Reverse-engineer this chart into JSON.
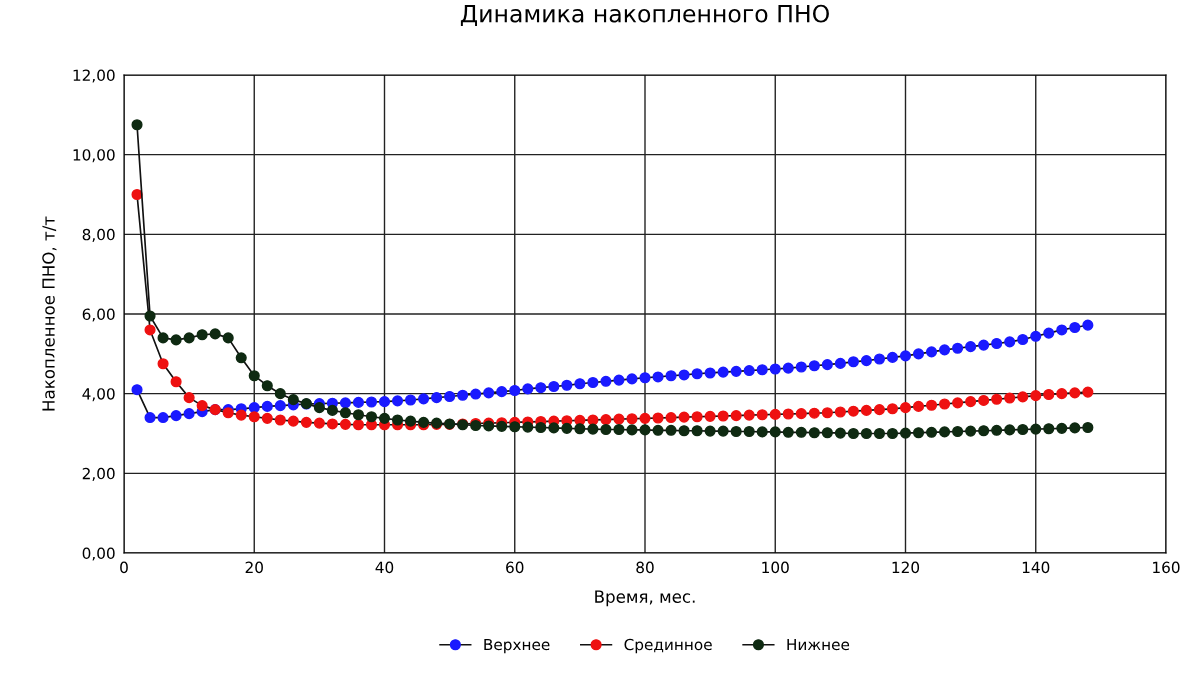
{
  "chart_data": {
    "type": "line",
    "title": "Динамика накопленного ПНО",
    "xlabel": "Время, мес.",
    "ylabel": "Накопленное ПНО, т/т",
    "x": [
      2,
      4,
      6,
      8,
      10,
      12,
      14,
      16,
      18,
      20,
      22,
      24,
      26,
      28,
      30,
      32,
      34,
      36,
      38,
      40,
      42,
      44,
      46,
      48,
      50,
      52,
      54,
      56,
      58,
      60,
      62,
      64,
      66,
      68,
      70,
      72,
      74,
      76,
      78,
      80,
      82,
      84,
      86,
      88,
      90,
      92,
      94,
      96,
      98,
      100,
      102,
      104,
      106,
      108,
      110,
      112,
      114,
      116,
      118,
      120,
      122,
      124,
      126,
      128,
      130,
      132,
      134,
      136,
      138,
      140,
      142,
      144,
      146,
      148
    ],
    "series": [
      {
        "name": "Верхнее",
        "color": "#1a1aff",
        "values": [
          4.1,
          3.4,
          3.4,
          3.45,
          3.5,
          3.55,
          3.6,
          3.6,
          3.62,
          3.65,
          3.68,
          3.7,
          3.72,
          3.74,
          3.75,
          3.76,
          3.77,
          3.78,
          3.79,
          3.8,
          3.82,
          3.84,
          3.87,
          3.9,
          3.93,
          3.96,
          3.99,
          4.02,
          4.05,
          4.08,
          4.12,
          4.15,
          4.18,
          4.21,
          4.25,
          4.28,
          4.31,
          4.34,
          4.37,
          4.4,
          4.42,
          4.45,
          4.47,
          4.5,
          4.52,
          4.54,
          4.56,
          4.58,
          4.6,
          4.62,
          4.64,
          4.67,
          4.7,
          4.73,
          4.76,
          4.8,
          4.83,
          4.87,
          4.91,
          4.95,
          5.0,
          5.05,
          5.1,
          5.14,
          5.18,
          5.22,
          5.26,
          5.3,
          5.36,
          5.44,
          5.52,
          5.6,
          5.66,
          5.72
        ]
      },
      {
        "name": "Срединное",
        "color": "#ee1111",
        "values": [
          9.0,
          5.6,
          4.75,
          4.3,
          3.9,
          3.7,
          3.6,
          3.52,
          3.46,
          3.42,
          3.38,
          3.34,
          3.31,
          3.28,
          3.26,
          3.24,
          3.23,
          3.22,
          3.22,
          3.22,
          3.22,
          3.22,
          3.22,
          3.23,
          3.23,
          3.24,
          3.25,
          3.26,
          3.27,
          3.28,
          3.29,
          3.3,
          3.31,
          3.32,
          3.33,
          3.34,
          3.35,
          3.36,
          3.37,
          3.38,
          3.39,
          3.4,
          3.41,
          3.42,
          3.43,
          3.44,
          3.45,
          3.46,
          3.47,
          3.48,
          3.49,
          3.5,
          3.51,
          3.52,
          3.54,
          3.56,
          3.58,
          3.6,
          3.62,
          3.65,
          3.68,
          3.71,
          3.74,
          3.77,
          3.8,
          3.83,
          3.86,
          3.89,
          3.92,
          3.95,
          3.98,
          4.0,
          4.02,
          4.04
        ]
      },
      {
        "name": "Нижнее",
        "color": "#0f2a12",
        "values": [
          10.75,
          5.95,
          5.4,
          5.35,
          5.4,
          5.48,
          5.5,
          5.4,
          4.9,
          4.45,
          4.2,
          4.0,
          3.85,
          3.75,
          3.65,
          3.58,
          3.52,
          3.47,
          3.42,
          3.38,
          3.34,
          3.31,
          3.28,
          3.26,
          3.24,
          3.22,
          3.2,
          3.19,
          3.18,
          3.17,
          3.16,
          3.15,
          3.14,
          3.13,
          3.12,
          3.11,
          3.1,
          3.1,
          3.09,
          3.09,
          3.08,
          3.08,
          3.07,
          3.07,
          3.06,
          3.06,
          3.05,
          3.05,
          3.04,
          3.04,
          3.03,
          3.03,
          3.02,
          3.02,
          3.01,
          3.0,
          3.0,
          3.0,
          3.0,
          3.01,
          3.02,
          3.03,
          3.04,
          3.05,
          3.06,
          3.07,
          3.08,
          3.09,
          3.1,
          3.11,
          3.12,
          3.13,
          3.14,
          3.15
        ]
      }
    ],
    "xlim": [
      0,
      160
    ],
    "xticks": [
      0,
      20,
      40,
      60,
      80,
      100,
      120,
      140,
      160
    ],
    "ylim": [
      0,
      12
    ],
    "yticks": [
      {
        "value": 0,
        "label": "0,00"
      },
      {
        "value": 2,
        "label": "2,00"
      },
      {
        "value": 4,
        "label": "4,00"
      },
      {
        "value": 6,
        "label": "6,00"
      },
      {
        "value": 8,
        "label": "8,00"
      },
      {
        "value": 10,
        "label": "10,00"
      },
      {
        "value": 12,
        "label": "12,00"
      }
    ],
    "grid": true,
    "legend": "bottom",
    "marker": "circle",
    "line_style": "solid"
  }
}
